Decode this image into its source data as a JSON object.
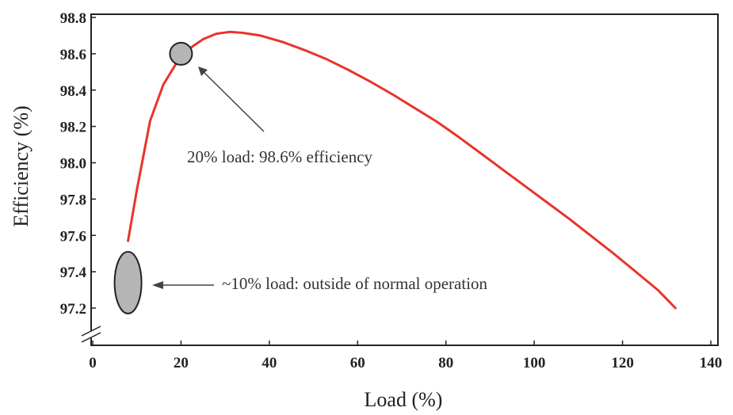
{
  "chart_data": {
    "type": "line",
    "xlabel": "Load (%)",
    "ylabel": "Efficiency (%)",
    "xlim": [
      0,
      140
    ],
    "ylim": [
      97.2,
      98.8
    ],
    "x_ticks": [
      "0",
      "20",
      "40",
      "60",
      "80",
      "100",
      "120",
      "140"
    ],
    "y_ticks": [
      "98.8",
      "98.6",
      "98.4",
      "98.2",
      "98.0",
      "97.8",
      "97.6",
      "97.4",
      "97.2"
    ],
    "grid": false,
    "y_axis_break": true,
    "series": [
      {
        "color": "#e8352b",
        "x": [
          8,
          10,
          13,
          16,
          19,
          22,
          25,
          28,
          31,
          34,
          38,
          43,
          48,
          53,
          58,
          63,
          68,
          73,
          78,
          83,
          88,
          93,
          98,
          103,
          108,
          113,
          118,
          123,
          128,
          132
        ],
        "y": [
          97.57,
          97.85,
          98.23,
          98.43,
          98.55,
          98.63,
          98.68,
          98.71,
          98.72,
          98.715,
          98.7,
          98.665,
          98.62,
          98.57,
          98.51,
          98.445,
          98.375,
          98.3,
          98.225,
          98.14,
          98.05,
          97.96,
          97.87,
          97.78,
          97.69,
          97.595,
          97.5,
          97.4,
          97.3,
          97.2
        ]
      }
    ],
    "annotations": [
      {
        "text": "20% load: 98.6% efficiency",
        "marker": {
          "shape": "circle",
          "x": 20,
          "y": 98.6
        }
      },
      {
        "text": "~10% load: outside of normal operation",
        "marker": {
          "shape": "ellipse",
          "x": 8,
          "y_range": [
            97.17,
            97.51
          ]
        }
      }
    ],
    "colors": {
      "line": "#e8352b",
      "marker_fill": "#b5b5b5",
      "marker_stroke": "#222222",
      "arrow": "#444444"
    }
  }
}
